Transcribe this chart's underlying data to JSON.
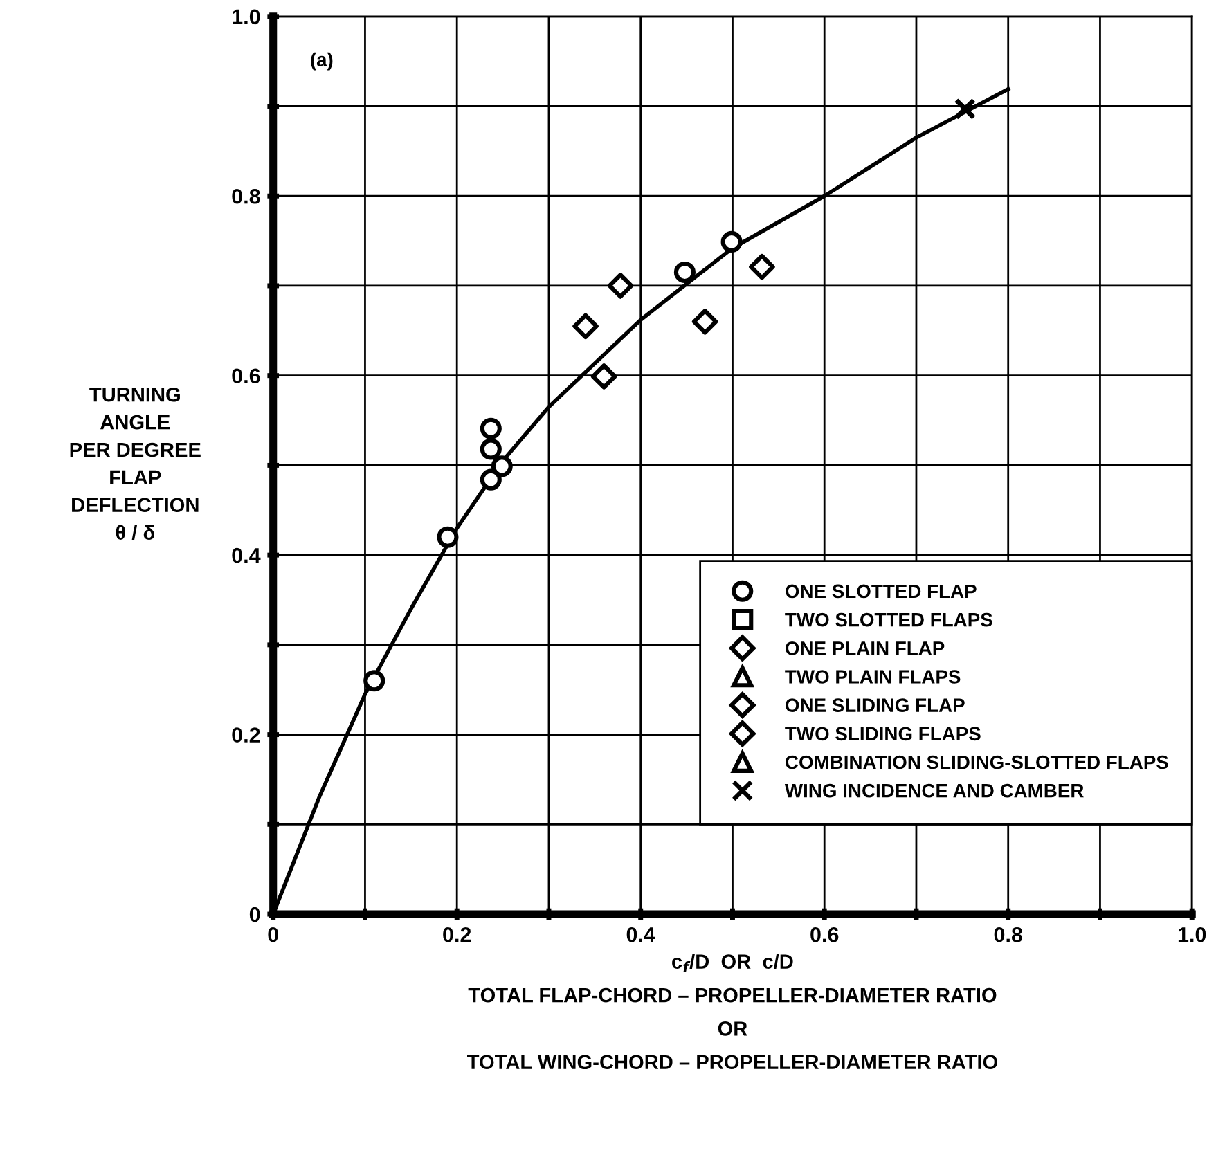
{
  "chart_data": {
    "type": "scatter",
    "xlabel": "c$_{f}$/D  OR  c/D\nTOTAL FLAP-CHORD – PROPELLER-DIAMETER RATIO\nOR\nTOTAL WING-CHORD – PROPELLER-DIAMETER RATIO",
    "ylabel": "TURNING\nANGLE\nPER DEGREE\nFLAP\nDEFLECTION\nθ / δ",
    "annotations": [
      "(a)"
    ],
    "xlim": [
      0,
      1.0
    ],
    "ylim": [
      0,
      1.0
    ],
    "xticks": [
      0,
      {
        "value": 0.1,
        "label": null
      },
      0.2,
      {
        "value": 0.3,
        "label": null
      },
      0.4,
      {
        "value": 0.5,
        "label": null
      },
      0.6,
      {
        "value": 0.7,
        "label": null
      },
      0.8,
      {
        "value": 0.9,
        "label": null
      },
      {
        "value": 1.0,
        "label": "1.0"
      }
    ],
    "yticks": [
      0,
      {
        "value": 0.1,
        "label": null
      },
      0.2,
      {
        "value": 0.3,
        "label": null
      },
      0.4,
      {
        "value": 0.5,
        "label": null
      },
      0.6,
      {
        "value": 0.7,
        "label": null
      },
      0.8,
      {
        "value": 0.9,
        "label": null
      },
      {
        "value": 1.0,
        "label": "1.0"
      }
    ],
    "grid": true,
    "legend": "bottom right",
    "series": [
      {
        "name": "ONE SLOTTED FLAP",
        "color": "#000000",
        "marker": "circle",
        "x": [
          0.11,
          0.19,
          0.237,
          0.237,
          0.249,
          0.237,
          0.448,
          0.499
        ],
        "values": [
          0.26,
          0.42,
          0.541,
          0.518,
          0.499,
          0.484,
          0.715,
          0.749
        ]
      },
      {
        "name": "TWO SLOTTED FLAPS",
        "color": "#000000",
        "marker": "square"
      },
      {
        "name": "ONE PLAIN FLAP",
        "color": "#000000",
        "marker": "diamond"
      },
      {
        "name": "TWO PLAIN FLAPS",
        "color": "#000000",
        "marker": "triangle"
      },
      {
        "name": "ONE SLIDING FLAP",
        "color": "#000000",
        "marker": "diamond",
        "x": [
          0.34,
          0.378,
          0.36,
          0.532
        ],
        "values": [
          0.655,
          0.7,
          0.599,
          0.721
        ]
      },
      {
        "name": "TWO SLIDING FLAPS",
        "color": "#000000",
        "marker": "diamond",
        "x": [
          0.47
        ],
        "values": [
          0.66
        ]
      },
      {
        "name": "COMBINATION SLIDING-SLOTTED FLAPS",
        "color": "#000000",
        "marker": "triangle"
      },
      {
        "name": "WING INCIDENCE AND CAMBER",
        "color": "#000000",
        "marker": "cross",
        "x": [
          0.753
        ],
        "values": [
          0.897
        ]
      },
      {
        "type": "line",
        "color": "#000000",
        "marker": "none",
        "x": [
          0,
          0.05,
          0.1,
          0.15,
          0.2,
          0.25,
          0.3,
          0.4,
          0.5,
          0.6,
          0.7,
          0.8
        ],
        "values": [
          0,
          0.13,
          0.245,
          0.34,
          0.43,
          0.505,
          0.565,
          0.662,
          0.742,
          0.8,
          0.865,
          0.919
        ]
      }
    ]
  }
}
